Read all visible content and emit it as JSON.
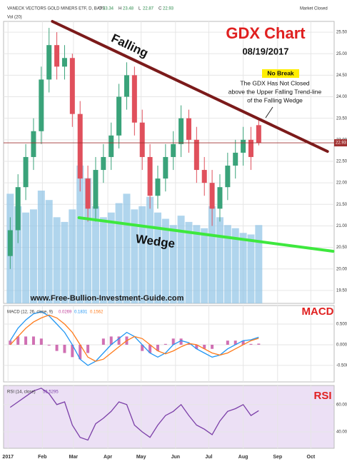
{
  "chart_data": [
    {
      "type": "candlestick",
      "header": "VANECK VECTORS GOLD MINERS ETF, D, BATS",
      "ohlc_labels": [
        "O",
        "H",
        "L",
        "C"
      ],
      "status": "Market Closed",
      "volume_label": "Vol (20)",
      "title": "GDX Chart",
      "subtitle": "08/19/2017",
      "note_title": "No Break",
      "note": [
        "The GDX Has Not Closed",
        "above the Upper Falling Trend-line",
        "of the Falling Wedge"
      ],
      "watermark": "www.Free-Bullion-Investment-Guide.com",
      "x": [
        2,
        9,
        16,
        23,
        30,
        37,
        44,
        51,
        58,
        65,
        72,
        79,
        86,
        93,
        100,
        107,
        114,
        121,
        128,
        135,
        142,
        149,
        156,
        163,
        170,
        177,
        184,
        191,
        198,
        205,
        212,
        219,
        226
      ],
      "open": [
        20.3,
        20.9,
        21.9,
        22.6,
        23.2,
        24.4,
        25.2,
        24.7,
        24.9,
        23.6,
        22.1,
        21.4,
        22.3,
        22.6,
        23.1,
        24.0,
        24.5,
        23.4,
        22.6,
        21.7,
        22.1,
        22.6,
        22.9,
        23.5,
        23.0,
        22.3,
        22.0,
        21.4,
        21.9,
        22.4,
        22.7,
        23.0,
        23.34
      ],
      "high": [
        21.2,
        22.2,
        22.9,
        23.5,
        24.7,
        25.6,
        25.5,
        25.2,
        25.0,
        23.9,
        22.4,
        22.6,
        22.9,
        23.4,
        24.3,
        24.8,
        24.7,
        23.7,
        22.9,
        22.4,
        22.9,
        23.2,
        23.8,
        23.7,
        23.3,
        22.6,
        22.3,
        22.2,
        22.7,
        23.0,
        23.3,
        23.3,
        23.48
      ],
      "low": [
        20.0,
        20.6,
        21.6,
        22.3,
        22.9,
        24.1,
        24.4,
        24.4,
        23.3,
        21.8,
        21.1,
        21.1,
        22.0,
        22.3,
        22.8,
        23.7,
        23.1,
        22.3,
        21.4,
        21.4,
        21.8,
        22.3,
        22.6,
        22.7,
        22.0,
        21.7,
        21.0,
        21.1,
        21.6,
        22.1,
        22.4,
        22.3,
        22.87
      ],
      "close": [
        20.9,
        21.9,
        22.6,
        23.2,
        24.4,
        25.2,
        24.7,
        24.9,
        23.6,
        22.1,
        21.4,
        22.3,
        22.6,
        23.1,
        24.0,
        24.5,
        23.4,
        22.6,
        21.7,
        22.1,
        22.6,
        22.9,
        23.5,
        23.0,
        22.3,
        22.0,
        21.4,
        21.9,
        22.4,
        22.7,
        23.0,
        22.6,
        22.93
      ],
      "volume": [
        70,
        62,
        58,
        60,
        72,
        66,
        55,
        52,
        60,
        88,
        80,
        62,
        55,
        58,
        64,
        70,
        60,
        62,
        68,
        58,
        54,
        50,
        56,
        52,
        50,
        48,
        62,
        55,
        50,
        48,
        45,
        44,
        50
      ],
      "vlim": [
        0,
        180
      ],
      "up_color": "#3aa37a",
      "down_color": "#e0505c",
      "volume_color": "#8ec3e6",
      "last_color": "#a03030",
      "trendlines": [
        {
          "label": "Falling",
          "x": [
            40,
            288
          ],
          "y": [
            25.75,
            22.73
          ],
          "color": "#7b1a1a"
        },
        {
          "label": "Wedge",
          "x": [
            64,
            293
          ],
          "y": [
            21.19,
            20.41
          ],
          "color": "#3ee83e"
        }
      ],
      "xlim": [
        -4,
        294
      ],
      "ylim": [
        19.2,
        25.75
      ],
      "yticks": [
        {
          "value": 19.5,
          "label": "19.50"
        },
        {
          "value": 20,
          "label": "20.00"
        },
        {
          "value": 20.5,
          "label": "20.50"
        },
        {
          "value": 21,
          "label": "21.00"
        },
        {
          "value": 21.5,
          "label": "21.50"
        },
        {
          "value": 22,
          "label": "22.00"
        },
        {
          "value": 22.5,
          "label": "22.50"
        },
        {
          "value": 23,
          "label": "23.00"
        },
        {
          "value": 23.5,
          "label": "23.50"
        },
        {
          "value": 24,
          "label": "24.00"
        },
        {
          "value": 24.5,
          "label": "24.50"
        },
        {
          "value": 25,
          "label": "25.00"
        },
        {
          "value": 25.5,
          "label": "25.50"
        }
      ],
      "grid": true
    },
    {
      "type": "macd",
      "title": "MACD",
      "legend_title": "MACD (12, 26, close, 9)",
      "x": [
        2,
        9,
        16,
        23,
        30,
        37,
        44,
        51,
        58,
        65,
        72,
        79,
        86,
        93,
        100,
        107,
        114,
        121,
        128,
        135,
        142,
        149,
        156,
        163,
        170,
        177,
        184,
        191,
        198,
        205,
        212,
        219,
        226
      ],
      "series": [
        {
          "style": "histogram",
          "color": "#c0409a",
          "values": [
            0.1,
            0.2,
            0.2,
            0.2,
            0.15,
            -0.02,
            -0.15,
            -0.2,
            -0.3,
            -0.35,
            -0.2,
            0.0,
            0.15,
            0.2,
            0.2,
            0.2,
            0.0,
            -0.15,
            -0.2,
            -0.15,
            0.02,
            0.15,
            0.15,
            0.02,
            -0.1,
            -0.1,
            -0.1,
            0.0,
            0.1,
            0.1,
            0.1,
            0.02,
            0.0269
          ]
        },
        {
          "style": "line",
          "color": "#2196f3",
          "values": [
            0.1,
            0.4,
            0.6,
            0.75,
            0.8,
            0.7,
            0.5,
            0.3,
            0.0,
            -0.35,
            -0.5,
            -0.4,
            -0.2,
            0.0,
            0.15,
            0.3,
            0.2,
            0.0,
            -0.2,
            -0.3,
            -0.2,
            0.0,
            0.1,
            0.05,
            -0.1,
            -0.2,
            -0.3,
            -0.25,
            -0.1,
            0.0,
            0.1,
            0.12,
            0.1831
          ]
        },
        {
          "style": "line",
          "color": "#ff7a1a",
          "values": [
            0.0,
            0.2,
            0.4,
            0.55,
            0.65,
            0.72,
            0.65,
            0.5,
            0.3,
            0.0,
            -0.3,
            -0.4,
            -0.35,
            -0.2,
            -0.05,
            0.1,
            0.2,
            0.15,
            0.0,
            -0.15,
            -0.22,
            -0.15,
            -0.05,
            0.03,
            0.0,
            -0.1,
            -0.2,
            -0.25,
            -0.2,
            -0.1,
            0.0,
            0.1,
            0.1562
          ]
        }
      ],
      "xlim": [
        -4,
        294
      ],
      "ylim": [
        -0.9,
        0.95
      ],
      "yticks": [
        {
          "value": 0.5,
          "label": "0.5000"
        },
        {
          "value": 0,
          "label": "0.0000"
        },
        {
          "value": -0.5,
          "label": "-0.5000"
        }
      ],
      "grid": true
    },
    {
      "type": "line",
      "title": "RSI",
      "legend_title": "RSI (14, close)",
      "x": [
        2,
        9,
        16,
        23,
        30,
        37,
        44,
        51,
        58,
        65,
        72,
        79,
        86,
        93,
        100,
        107,
        114,
        121,
        128,
        135,
        142,
        149,
        156,
        163,
        170,
        177,
        184,
        191,
        198,
        205,
        212,
        219,
        226
      ],
      "series": [
        {
          "color": "#7b3fa8",
          "values": [
            58,
            62,
            66,
            70,
            72,
            68,
            60,
            62,
            45,
            36,
            34,
            46,
            50,
            55,
            62,
            60,
            45,
            40,
            36,
            45,
            52,
            55,
            60,
            52,
            45,
            42,
            38,
            48,
            55,
            57,
            60,
            52,
            55.5295
          ]
        }
      ],
      "xlim": [
        -4,
        294
      ],
      "ylim": [
        28,
        74
      ],
      "yticks": [
        {
          "value": 60,
          "label": "60.0000"
        },
        {
          "value": 40,
          "label": "40.0000"
        }
      ],
      "xticks": [
        {
          "value": 0,
          "label": "2017"
        },
        {
          "value": 31,
          "label": "Feb"
        },
        {
          "value": 59,
          "label": "Mar"
        },
        {
          "value": 90,
          "label": "Apr"
        },
        {
          "value": 120,
          "label": "May"
        },
        {
          "value": 151,
          "label": "Jun"
        },
        {
          "value": 181,
          "label": "Jul"
        },
        {
          "value": 212,
          "label": "Aug"
        },
        {
          "value": 243,
          "label": "Sep"
        },
        {
          "value": 273,
          "label": "Oct"
        }
      ],
      "grid": true
    }
  ]
}
